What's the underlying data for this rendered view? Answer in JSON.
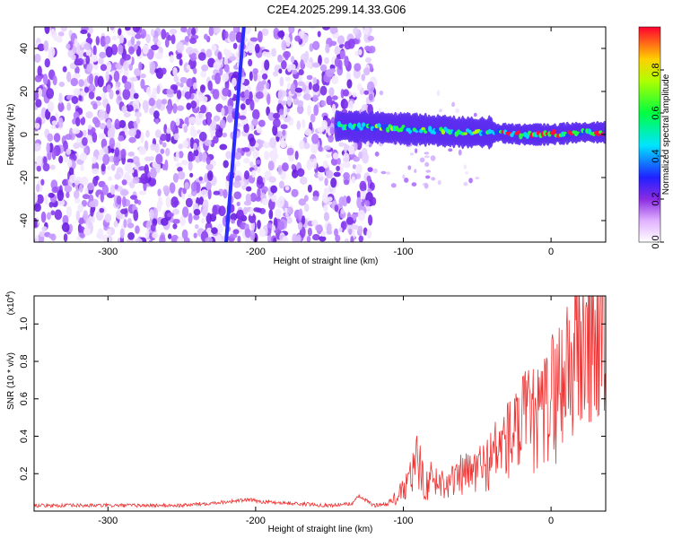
{
  "title": "C2E4.2025.299.14.33.G06",
  "colors": {
    "snr_line": "#ee3333",
    "axis": "#000000",
    "background": "#ffffff"
  },
  "chart_data": [
    {
      "type": "heatmap",
      "xlabel": "Height of straight line (km)",
      "ylabel": "Frequency (Hz)",
      "xlim": [
        -350,
        37
      ],
      "ylim": [
        -50,
        50
      ],
      "xticks": [
        -300,
        -200,
        -100,
        0
      ],
      "xtick_labels": [
        "-300",
        "-200",
        "-100",
        "0"
      ],
      "yticks": [
        -40,
        -20,
        0,
        20,
        40
      ],
      "ytick_labels": [
        "-40",
        "-20",
        "0",
        "20",
        "40"
      ],
      "colorbar": {
        "label": "Normalized spectral amplitude",
        "range": [
          0,
          1
        ],
        "ticks": [
          0.0,
          0.2,
          0.4,
          0.6,
          0.8
        ],
        "tick_labels": [
          "0.0",
          "0.2",
          "0.4",
          "0.6",
          "0.8"
        ],
        "colormap": "white-violet-blue-cyan-green-yellow-red"
      },
      "features": {
        "noise_region_x": [
          -350,
          -120
        ],
        "diagonal_streak": [
          {
            "x": -220,
            "y": -50
          },
          {
            "x": -208,
            "y": 50
          }
        ],
        "signal_band": [
          {
            "x": -145,
            "y": 4
          },
          {
            "x": -110,
            "y": 3
          },
          {
            "x": -80,
            "y": 2
          },
          {
            "x": -60,
            "y": 1
          },
          {
            "x": -40,
            "y": 1
          },
          {
            "x": -20,
            "y": 0
          },
          {
            "x": 0,
            "y": 0
          },
          {
            "x": 20,
            "y": 1
          },
          {
            "x": 37,
            "y": 1
          }
        ]
      }
    },
    {
      "type": "line",
      "xlabel": "Height of straight line (km)",
      "ylabel": "SNR (10 * v/v)",
      "y_multiplier": "(x10",
      "y_multiplier_exp": "4",
      "xlim": [
        -350,
        37
      ],
      "ylim": [
        0,
        1.15
      ],
      "xticks": [
        -300,
        -200,
        -100,
        0
      ],
      "xtick_labels": [
        "-300",
        "-200",
        "-100",
        "0"
      ],
      "yticks": [
        0.2,
        0.4,
        0.6,
        0.8,
        1.0
      ],
      "ytick_labels": [
        "0.2",
        "0.4",
        "0.6",
        "0.8",
        "1.0"
      ],
      "series": [
        {
          "x": [
            -350,
            -300,
            -250,
            -205,
            -195,
            -150,
            -135,
            -130,
            -120,
            -110,
            -100,
            -95,
            -90,
            -85,
            -80,
            -75,
            -70,
            -65,
            -60,
            -55,
            -50,
            -45,
            -40,
            -35,
            -30,
            -25,
            -20,
            -15,
            -10,
            -5,
            0,
            5,
            10,
            15,
            20,
            25,
            30,
            37
          ],
          "y": [
            0.03,
            0.03,
            0.03,
            0.06,
            0.05,
            0.03,
            0.04,
            0.08,
            0.03,
            0.04,
            0.12,
            0.2,
            0.3,
            0.15,
            0.2,
            0.16,
            0.2,
            0.17,
            0.22,
            0.22,
            0.25,
            0.27,
            0.32,
            0.38,
            0.42,
            0.45,
            0.5,
            0.55,
            0.52,
            0.58,
            0.68,
            0.72,
            0.86,
            0.92,
            0.97,
            1.01,
            1.04,
            1.07
          ]
        }
      ]
    }
  ]
}
